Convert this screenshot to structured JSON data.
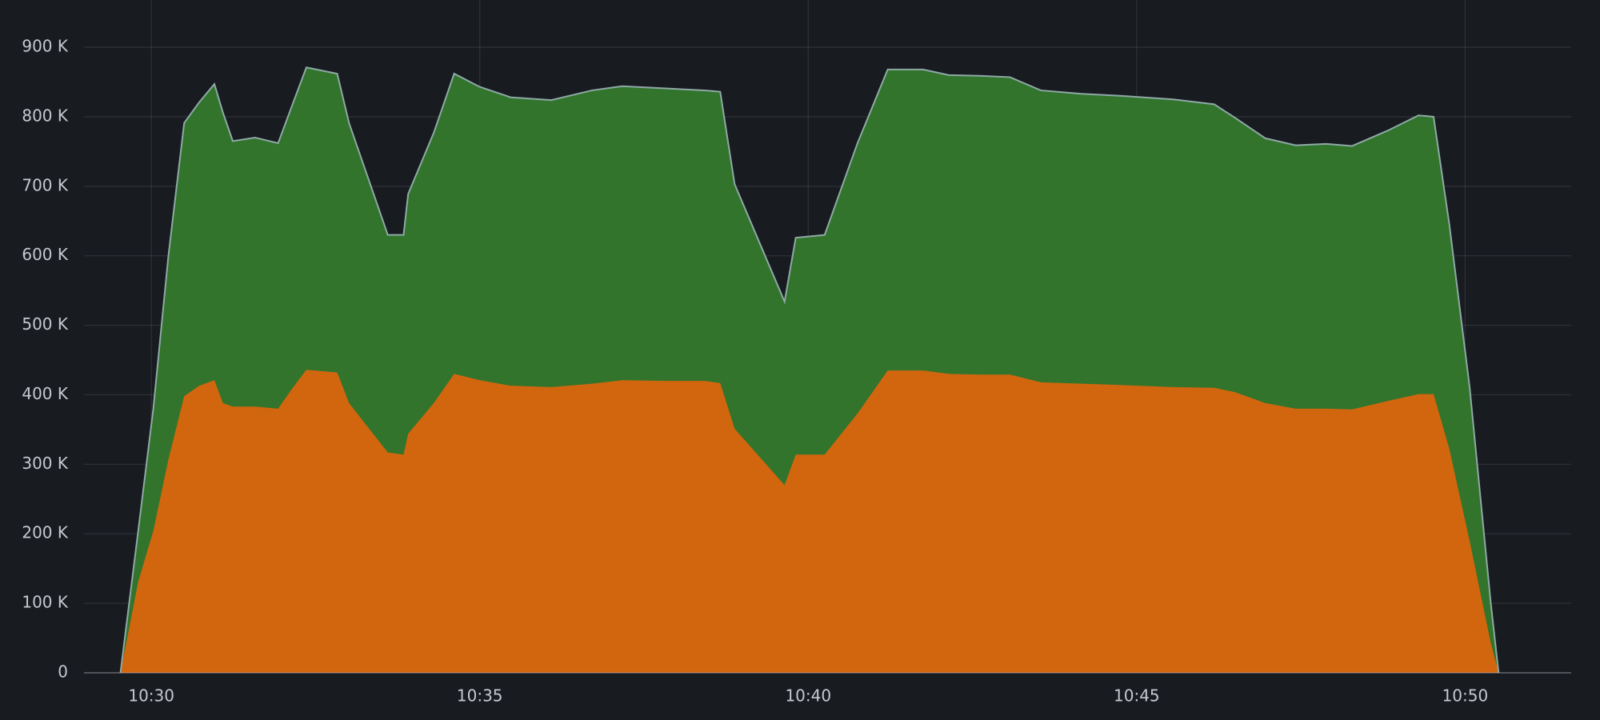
{
  "chart_data": {
    "type": "stacked-area",
    "x": [
      629.53,
      629.8,
      630.03,
      630.26,
      630.5,
      630.73,
      630.96,
      631.09,
      631.24,
      631.58,
      631.93,
      632.13,
      632.36,
      632.83,
      633.01,
      633.6,
      633.84,
      633.91,
      634.3,
      634.61,
      635.0,
      635.47,
      636.09,
      636.71,
      637.17,
      637.8,
      638.42,
      638.66,
      638.88,
      639.64,
      639.81,
      640.25,
      640.75,
      641.21,
      641.75,
      642.14,
      642.61,
      643.07,
      643.54,
      644.16,
      644.78,
      645.56,
      646.18,
      646.49,
      646.96,
      647.42,
      647.89,
      648.28,
      648.82,
      649.29,
      649.52,
      649.76,
      650.07,
      650.39,
      650.51
    ],
    "series": [
      {
        "color": "#d2660f",
        "values": [
          0,
          131000,
          204000,
          307000,
          398000,
          413000,
          421000,
          388000,
          383000,
          383000,
          380000,
          407000,
          436000,
          432000,
          388000,
          317000,
          314000,
          344000,
          388000,
          430000,
          421000,
          413000,
          411000,
          416000,
          421000,
          420000,
          420000,
          417000,
          351000,
          270000,
          314000,
          314000,
          373000,
          435000,
          435000,
          430000,
          429000,
          429000,
          418000,
          416000,
          414000,
          411000,
          410000,
          404000,
          388000,
          380000,
          380000,
          379000,
          391000,
          401000,
          401000,
          322000,
          189000,
          43000,
          0
        ]
      },
      {
        "color": "#32742b",
        "values": [
          0,
          73000,
          176000,
          293000,
          393000,
          408000,
          426000,
          418000,
          382000,
          387000,
          382000,
          406000,
          435000,
          430000,
          403000,
          313000,
          316000,
          345000,
          389000,
          432000,
          422000,
          415000,
          413000,
          422000,
          423000,
          421000,
          418000,
          419000,
          352000,
          264000,
          312000,
          316000,
          389000,
          433000,
          433000,
          430000,
          430000,
          428000,
          420000,
          417000,
          416000,
          414000,
          408000,
          395000,
          381000,
          379000,
          381000,
          379000,
          389000,
          401000,
          399000,
          323000,
          221000,
          58000,
          0
        ]
      }
    ],
    "xlim": [
      628.975,
      651.615
    ],
    "xticks": [
      {
        "value": 630,
        "label": "10:30"
      },
      {
        "value": 635,
        "label": "10:35"
      },
      {
        "value": 640,
        "label": "10:40"
      },
      {
        "value": 645,
        "label": "10:45"
      },
      {
        "value": 650,
        "label": "10:50"
      }
    ],
    "ylim": [
      0,
      968000
    ],
    "yticks": [
      0,
      {
        "value": 100000,
        "label": "100 K"
      },
      {
        "value": 200000,
        "label": "200 K"
      },
      {
        "value": 300000,
        "label": "300 K"
      },
      {
        "value": 400000,
        "label": "400 K"
      },
      {
        "value": 500000,
        "label": "500 K"
      },
      {
        "value": 600000,
        "label": "600 K"
      },
      {
        "value": 700000,
        "label": "700 K"
      },
      {
        "value": 800000,
        "label": "800 K"
      },
      {
        "value": 900000,
        "label": "900 K"
      }
    ],
    "grid": true
  }
}
